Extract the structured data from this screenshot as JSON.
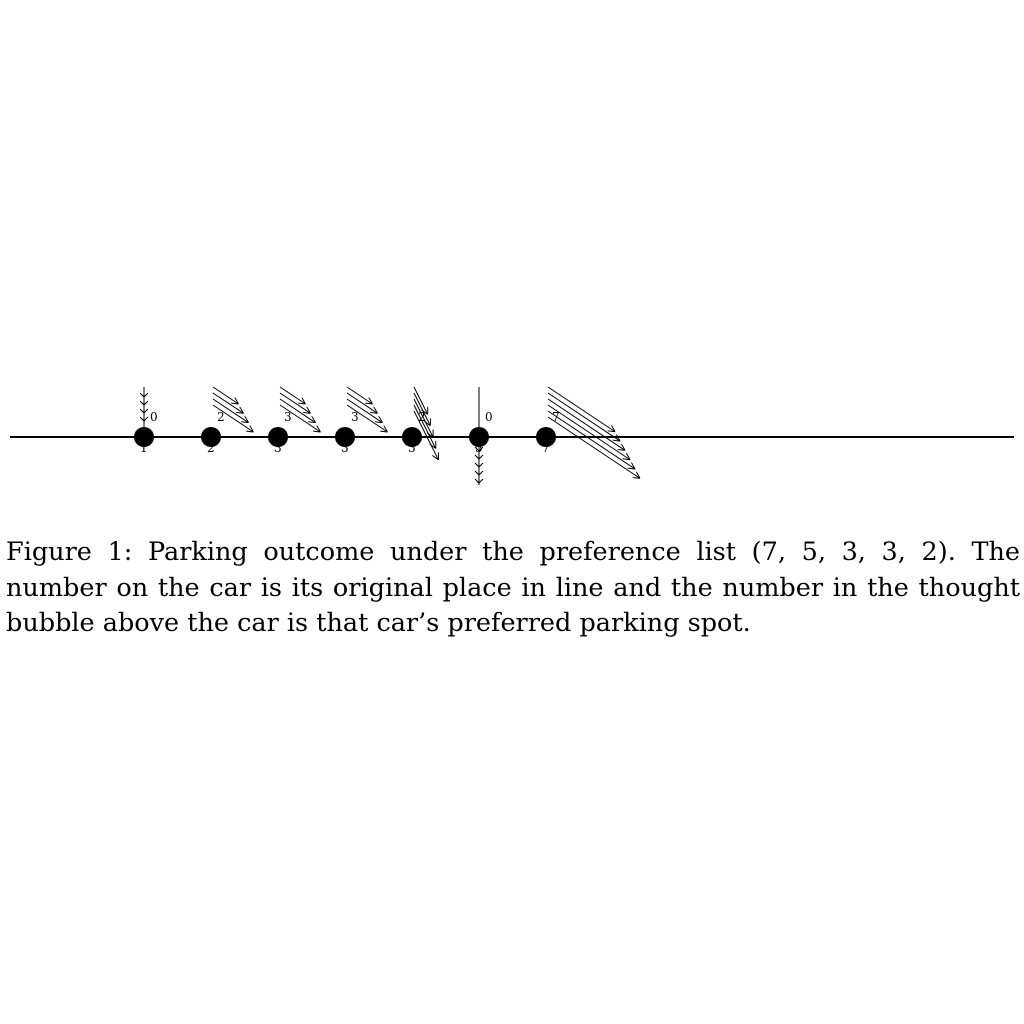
{
  "cars": [
    {
      "position_label": "1",
      "preference_label": "0",
      "arrow_count": 4,
      "arrow_dx": 0,
      "arrow_dy": 1
    },
    {
      "position_label": "2",
      "preference_label": "2",
      "arrow_count": 4,
      "arrow_dx": 1.5,
      "arrow_dy": 1
    },
    {
      "position_label": "3",
      "preference_label": "3",
      "arrow_count": 4,
      "arrow_dx": 1.5,
      "arrow_dy": 1
    },
    {
      "position_label": "3",
      "preference_label": "3",
      "arrow_count": 4,
      "arrow_dx": 1.5,
      "arrow_dy": 1
    },
    {
      "position_label": "3",
      "preference_label": "2",
      "arrow_count": 5,
      "arrow_dx": 0.5,
      "arrow_dy": 1
    },
    {
      "position_label": "5",
      "preference_label": "0",
      "arrow_count": 6,
      "arrow_dx": 0,
      "arrow_dy": 1
    },
    {
      "position_label": "7",
      "preference_label": "7",
      "arrow_count": 6,
      "arrow_dx": 1.5,
      "arrow_dy": 1
    }
  ],
  "caption": "Figure 1: Parking outcome under the preference list (7, 5, 3, 3, 2). The number on the car is its original place in line and the number in the thought bubble above the car is that car’s preferred parking spot.",
  "colors": {
    "ink": "#000000",
    "background": "#ffffff"
  }
}
